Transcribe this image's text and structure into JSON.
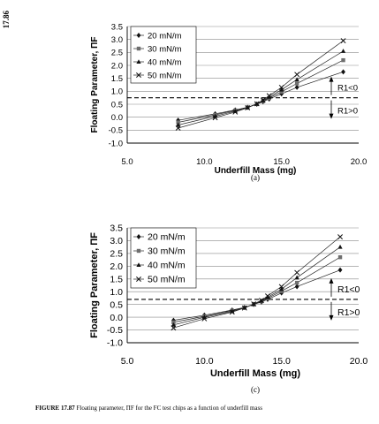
{
  "page": {
    "number": "17.86",
    "caption_label": "FIGURE 17.87",
    "caption_text": "Floating parameter, ΠF for the FC test chips as a function of underfill mass"
  },
  "chart_data": [
    {
      "type": "line",
      "panel_label": "(a)",
      "xlabel": "Underfill Mass (mg)",
      "ylabel": "Floating Parameter, ΠF",
      "xlim": [
        5.0,
        20.0
      ],
      "ylim": [
        -1.0,
        3.5
      ],
      "xticks": [
        "5.0",
        "10.0",
        "15.0",
        "20.0"
      ],
      "yticks": [
        "-1.0",
        "-0.5",
        "0.0",
        "0.5",
        "1.0",
        "1.5",
        "2.0",
        "2.5",
        "3.0",
        "3.5"
      ],
      "grid": true,
      "legend": "top-left",
      "reference_line": {
        "y": 0.75,
        "style": "dashed"
      },
      "annotations": {
        "upper": "R1<0",
        "lower": "R1>0"
      },
      "series": [
        {
          "name": "20 mN/m",
          "marker": "diamond",
          "x": [
            8.3,
            10.7,
            12.0,
            12.8,
            13.4,
            13.8,
            14.2,
            15.0,
            16.0,
            19.0
          ],
          "y": [
            -0.12,
            0.13,
            0.28,
            0.38,
            0.5,
            0.6,
            0.7,
            0.9,
            1.15,
            1.75
          ]
        },
        {
          "name": "30 mN/m",
          "marker": "square",
          "x": [
            8.3,
            10.7,
            12.0,
            12.8,
            13.4,
            13.8,
            14.2,
            15.0,
            16.0,
            19.0
          ],
          "y": [
            -0.2,
            0.09,
            0.26,
            0.38,
            0.51,
            0.62,
            0.74,
            0.98,
            1.3,
            2.2
          ]
        },
        {
          "name": "40 mN/m",
          "marker": "triangle",
          "x": [
            8.3,
            10.7,
            12.0,
            12.8,
            13.4,
            13.8,
            14.2,
            15.0,
            16.0,
            19.0
          ],
          "y": [
            -0.3,
            0.04,
            0.23,
            0.37,
            0.51,
            0.64,
            0.78,
            1.06,
            1.45,
            2.55
          ]
        },
        {
          "name": "50 mN/m",
          "marker": "cross",
          "x": [
            8.3,
            10.7,
            12.0,
            12.8,
            13.4,
            13.8,
            14.2,
            15.0,
            16.0,
            19.0
          ],
          "y": [
            -0.42,
            -0.02,
            0.2,
            0.36,
            0.52,
            0.66,
            0.83,
            1.15,
            1.65,
            2.95
          ]
        }
      ]
    },
    {
      "type": "line",
      "panel_label": "(c)",
      "xlabel": "Underfill Mass (mg)",
      "ylabel": "Floating Parameter, ΠF",
      "xlim": [
        5.0,
        20.0
      ],
      "ylim": [
        -1.0,
        3.5
      ],
      "xticks": [
        "5.0",
        "10.0",
        "15.0",
        "20.0"
      ],
      "yticks": [
        "-1.0",
        "-0.5",
        "0.0",
        "0.5",
        "1.0",
        "1.5",
        "2.0",
        "2.5",
        "3.0",
        "3.5"
      ],
      "grid": true,
      "legend": "top-left",
      "reference_line": {
        "y": 0.7,
        "style": "dashed"
      },
      "annotations": {
        "upper": "R1<0",
        "lower": "R1>0"
      },
      "series": [
        {
          "name": "20 mN/m",
          "marker": "diamond",
          "x": [
            8.0,
            10.0,
            11.8,
            12.6,
            13.2,
            13.7,
            14.1,
            15.0,
            16.0,
            18.8
          ],
          "y": [
            -0.12,
            0.08,
            0.28,
            0.38,
            0.5,
            0.6,
            0.7,
            0.95,
            1.2,
            1.85
          ]
        },
        {
          "name": "30 mN/m",
          "marker": "square",
          "x": [
            8.0,
            10.0,
            11.8,
            12.6,
            13.2,
            13.7,
            14.1,
            15.0,
            16.0,
            18.8
          ],
          "y": [
            -0.2,
            0.04,
            0.26,
            0.38,
            0.51,
            0.62,
            0.74,
            1.02,
            1.35,
            2.35
          ]
        },
        {
          "name": "40 mN/m",
          "marker": "triangle",
          "x": [
            8.0,
            10.0,
            11.8,
            12.6,
            13.2,
            13.7,
            14.1,
            15.0,
            16.0,
            18.8
          ],
          "y": [
            -0.3,
            0.0,
            0.23,
            0.37,
            0.51,
            0.64,
            0.78,
            1.1,
            1.55,
            2.75
          ]
        },
        {
          "name": "50 mN/m",
          "marker": "cross",
          "x": [
            8.0,
            10.0,
            11.8,
            12.6,
            13.2,
            13.7,
            14.1,
            15.0,
            16.0,
            18.8
          ],
          "y": [
            -0.42,
            -0.06,
            0.2,
            0.36,
            0.52,
            0.66,
            0.83,
            1.2,
            1.75,
            3.15
          ]
        }
      ]
    }
  ]
}
